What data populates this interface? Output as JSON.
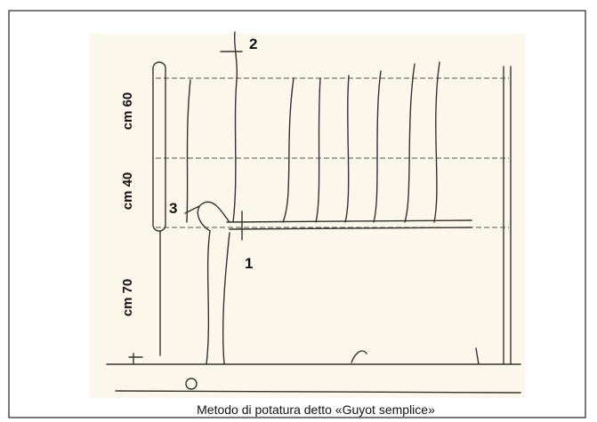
{
  "labels": {
    "cut_2": "2",
    "cut_3": "3",
    "cut_1": "1"
  },
  "measures": {
    "top": "cm 60",
    "middle": "cm 40",
    "bottom": "cm 70"
  },
  "caption": "Metodo di potatura detto «Guyot semplice»"
}
